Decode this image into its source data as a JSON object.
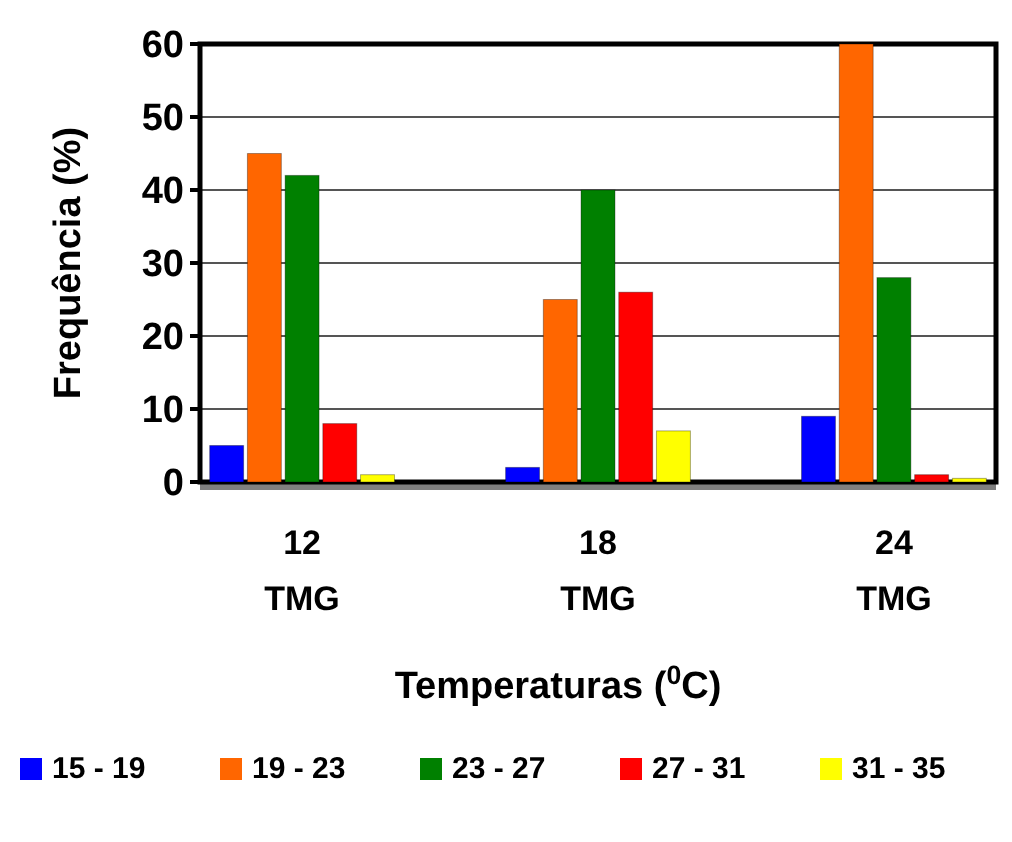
{
  "chart_data": {
    "type": "bar",
    "xlabel": "Temperaturas ($^{0}$C)",
    "ylabel": "Frequência (%)",
    "categories": [
      "12 TMG",
      "18 TMG",
      "24 TMG"
    ],
    "series": [
      {
        "name": "15 - 19",
        "color": "#0000ff",
        "values": [
          5,
          2,
          9
        ]
      },
      {
        "name": "19 - 23",
        "color": "#ff6600",
        "values": [
          45,
          25,
          60
        ]
      },
      {
        "name": "23 - 27",
        "color": "#008000",
        "values": [
          42,
          40,
          28
        ]
      },
      {
        "name": "27 - 31",
        "color": "#ff0000",
        "values": [
          8,
          26,
          1
        ]
      },
      {
        "name": "31 - 35",
        "color": "#ffff00",
        "values": [
          1,
          7,
          0.5
        ]
      }
    ],
    "ylim": [
      0,
      60
    ],
    "yticks": [
      0,
      10,
      20,
      30,
      40,
      50,
      60
    ],
    "grid": "y",
    "legend": "bottom"
  }
}
